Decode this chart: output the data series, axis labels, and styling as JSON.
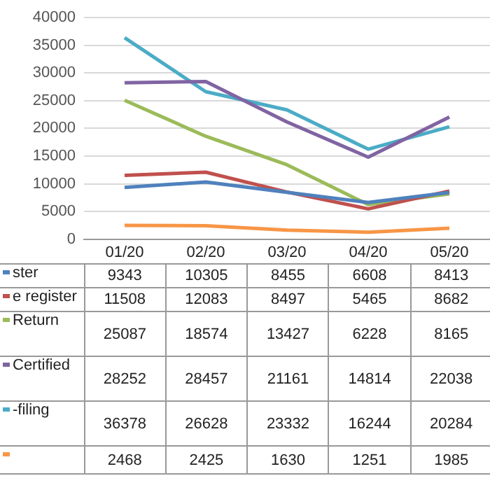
{
  "chart_data": {
    "type": "line",
    "categories": [
      "01/20",
      "02/20",
      "03/20",
      "04/20",
      "05/20"
    ],
    "series": [
      {
        "name": "ster",
        "color": "#4f81bd",
        "values": [
          9343,
          10305,
          8455,
          6608,
          8413
        ]
      },
      {
        "name": "e register",
        "color": "#c0504d",
        "values": [
          11508,
          12083,
          8497,
          5465,
          8682
        ]
      },
      {
        "name": "Return",
        "color": "#9bbb59",
        "values": [
          25087,
          18574,
          13427,
          6228,
          8165
        ]
      },
      {
        "name": "Certified",
        "color": "#8064a2",
        "values": [
          28252,
          28457,
          21161,
          14814,
          22038
        ]
      },
      {
        "name": "-filing",
        "color": "#4bacc6",
        "values": [
          36378,
          26628,
          23332,
          16244,
          20284
        ]
      },
      {
        "color": "#f79646",
        "values": [
          2468,
          2425,
          1630,
          1251,
          1985
        ]
      }
    ],
    "ylim": [
      0,
      40000
    ],
    "yticks": [
      0,
      5000,
      10000,
      15000,
      20000,
      25000,
      30000,
      35000,
      40000
    ],
    "grid": "y",
    "legend": "bottom",
    "marker": "none",
    "line_style": "solid",
    "data_labels": true
  }
}
